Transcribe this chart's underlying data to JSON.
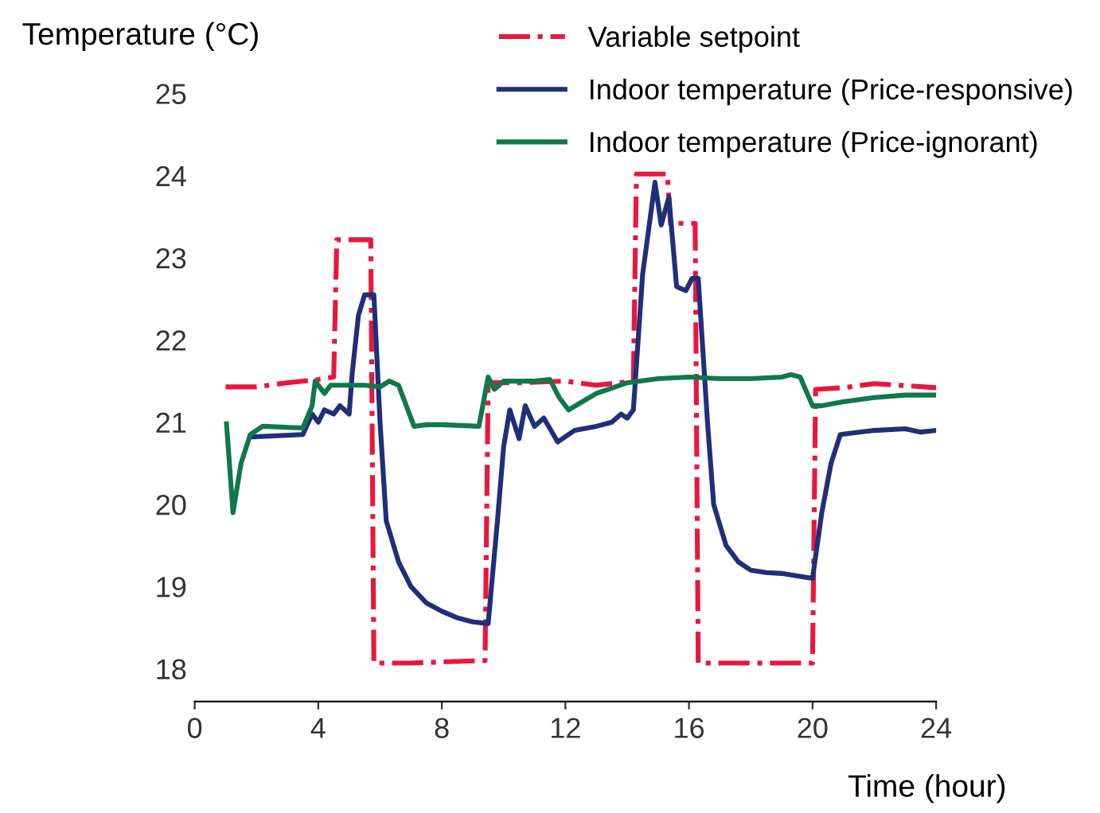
{
  "chart_data": {
    "type": "line",
    "ylabel": "Temperature (°C)",
    "xlabel": "Time (hour)",
    "xlim": [
      0,
      24
    ],
    "xticks": [
      0,
      4,
      8,
      12,
      16,
      20,
      24
    ],
    "ylim": [
      17.6,
      25
    ],
    "yticks": [
      18,
      19,
      20,
      21,
      22,
      23,
      24,
      25
    ],
    "grid": false,
    "legend": "top",
    "series": [
      {
        "name": "Variable setpoint",
        "color": "#e8173f",
        "line_style": "dashdot",
        "x": [
          1,
          2,
          3,
          4,
          4.5,
          4.6,
          5.7,
          5.8,
          7,
          9.4,
          9.5,
          10.5,
          12,
          13,
          14.2,
          14.3,
          15.3,
          15.4,
          16.2,
          16.3,
          18,
          20.0,
          20.1,
          21,
          22,
          24
        ],
        "values": [
          21.43,
          21.43,
          21.48,
          21.52,
          21.55,
          23.22,
          23.22,
          18.07,
          18.07,
          18.1,
          21.48,
          21.48,
          21.5,
          21.45,
          21.5,
          24.02,
          24.02,
          23.42,
          23.42,
          18.07,
          18.07,
          18.07,
          21.4,
          21.42,
          21.47,
          21.42
        ]
      },
      {
        "name": "Indoor temperature (Price-responsive)",
        "color": "#1f2f7a",
        "line_style": "solid",
        "x": [
          1.8,
          3.5,
          3.8,
          4.0,
          4.2,
          4.5,
          4.7,
          5.0,
          5.1,
          5.3,
          5.5,
          5.8,
          6.0,
          6.2,
          6.6,
          7.0,
          7.5,
          8.0,
          8.5,
          9.0,
          9.5,
          9.8,
          10.0,
          10.2,
          10.5,
          10.7,
          11.0,
          11.3,
          11.75,
          12.3,
          13.0,
          13.5,
          13.8,
          14.0,
          14.2,
          14.5,
          14.9,
          15.1,
          15.35,
          15.6,
          15.9,
          16.1,
          16.3,
          16.6,
          16.8,
          17.2,
          17.6,
          18.0,
          18.5,
          19.0,
          19.5,
          20.0,
          20.3,
          20.6,
          20.9,
          21.3,
          22,
          23,
          23.5,
          24
        ],
        "values": [
          20.82,
          20.85,
          21.1,
          21.0,
          21.15,
          21.1,
          21.2,
          21.1,
          21.6,
          22.3,
          22.55,
          22.55,
          21.0,
          19.8,
          19.3,
          19.0,
          18.8,
          18.7,
          18.62,
          18.57,
          18.55,
          19.8,
          20.7,
          21.15,
          20.8,
          21.2,
          20.95,
          21.05,
          20.76,
          20.9,
          20.95,
          21.0,
          21.1,
          21.05,
          21.15,
          22.8,
          23.92,
          23.4,
          23.74,
          22.65,
          22.6,
          22.75,
          22.75,
          21.0,
          20.0,
          19.5,
          19.3,
          19.2,
          19.17,
          19.16,
          19.13,
          19.1,
          19.9,
          20.5,
          20.85,
          20.87,
          20.9,
          20.92,
          20.88,
          20.9
        ]
      },
      {
        "name": "Indoor temperature (Price-ignorant)",
        "color": "#10784a",
        "line_style": "solid",
        "x": [
          1.03,
          1.24,
          1.5,
          1.8,
          2.2,
          3.5,
          3.8,
          3.9,
          4.2,
          4.4,
          5,
          5.5,
          6,
          6.3,
          6.6,
          7.1,
          7.5,
          8,
          9.2,
          9.5,
          9.7,
          10,
          11,
          11.5,
          11.8,
          12.1,
          13,
          14,
          15,
          16,
          17,
          18,
          19,
          19.3,
          19.6,
          20.0,
          20.3,
          21,
          22,
          23,
          24
        ],
        "values": [
          20.98,
          19.9,
          20.5,
          20.85,
          20.95,
          20.93,
          21.2,
          21.5,
          21.35,
          21.45,
          21.45,
          21.45,
          21.43,
          21.5,
          21.45,
          20.95,
          20.97,
          20.97,
          20.95,
          21.55,
          21.4,
          21.5,
          21.5,
          21.52,
          21.3,
          21.15,
          21.35,
          21.48,
          21.53,
          21.55,
          21.53,
          21.53,
          21.55,
          21.58,
          21.55,
          21.2,
          21.2,
          21.25,
          21.3,
          21.33,
          21.33
        ]
      }
    ]
  }
}
